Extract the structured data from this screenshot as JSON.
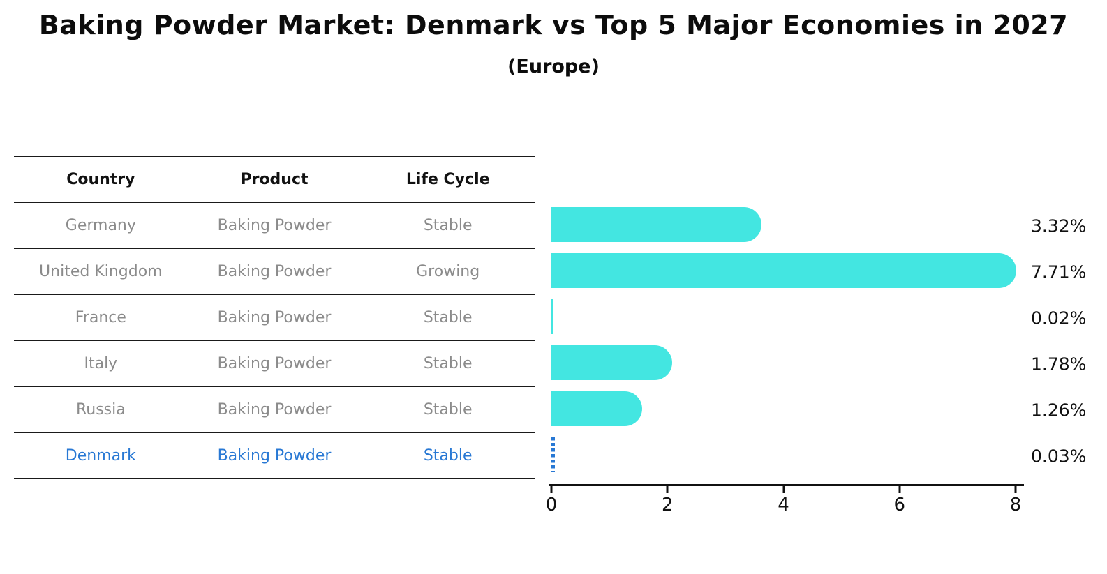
{
  "title": "Baking Powder Market: Denmark vs Top 5 Major Economies in 2027",
  "subtitle": "(Europe)",
  "colors": {
    "bar": "#43e6e1",
    "highlight": "#2878d4",
    "table_text": "#8b8b8b",
    "header_text": "#111111",
    "line": "#1a1a1a"
  },
  "table": {
    "columns": [
      "Country",
      "Product",
      "Life Cycle"
    ],
    "rows": [
      {
        "country": "Germany",
        "product": "Baking Powder",
        "life_cycle": "Stable",
        "highlight": false
      },
      {
        "country": "United Kingdom",
        "product": "Baking Powder",
        "life_cycle": "Growing",
        "highlight": false
      },
      {
        "country": "France",
        "product": "Baking Powder",
        "life_cycle": "Stable",
        "highlight": false
      },
      {
        "country": "Italy",
        "product": "Baking Powder",
        "life_cycle": "Stable",
        "highlight": false
      },
      {
        "country": "Russia",
        "product": "Baking Powder",
        "life_cycle": "Stable",
        "highlight": false
      },
      {
        "country": "Denmark",
        "product": "Baking Powder",
        "life_cycle": "Stable",
        "highlight": true
      }
    ]
  },
  "chart_data": {
    "type": "bar",
    "orientation": "horizontal",
    "title": "Baking Powder Market: Denmark vs Top 5 Major Economies in 2027 (Europe)",
    "categories": [
      "Germany",
      "United Kingdom",
      "France",
      "Italy",
      "Russia",
      "Denmark"
    ],
    "values": [
      3.32,
      7.71,
      0.02,
      1.78,
      1.26,
      0.03
    ],
    "value_labels": [
      "3.32%",
      "7.71%",
      "0.02%",
      "1.78%",
      "1.26%",
      "0.03%"
    ],
    "highlight_index": 5,
    "xlabel": "",
    "ylabel": "",
    "xlim": [
      0,
      8
    ],
    "x_ticks": [
      0,
      2,
      4,
      6,
      8
    ],
    "grid": false,
    "legend": false
  }
}
